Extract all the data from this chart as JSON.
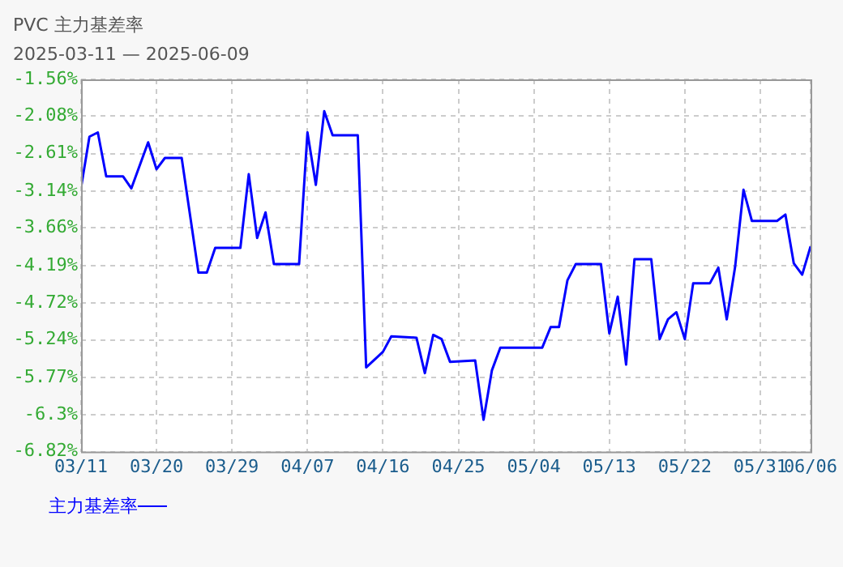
{
  "chart_data": {
    "type": "line",
    "title": "PVC 主力基差率",
    "subtitle": "2025-03-11 — 2025-06-09",
    "x": [
      "2025-03-11",
      "2025-03-12",
      "2025-03-13",
      "2025-03-14",
      "2025-03-16",
      "2025-03-17",
      "2025-03-19",
      "2025-03-20",
      "2025-03-21",
      "2025-03-23",
      "2025-03-25",
      "2025-03-26",
      "2025-03-27",
      "2025-03-30",
      "2025-03-31",
      "2025-04-01",
      "2025-04-02",
      "2025-04-03",
      "2025-04-06",
      "2025-04-07",
      "2025-04-08",
      "2025-04-09",
      "2025-04-10",
      "2025-04-13",
      "2025-04-14",
      "2025-04-16",
      "2025-04-17",
      "2025-04-20",
      "2025-04-21",
      "2025-04-22",
      "2025-04-23",
      "2025-04-24",
      "2025-04-27",
      "2025-04-28",
      "2025-04-29",
      "2025-04-30",
      "2025-05-05",
      "2025-05-06",
      "2025-05-07",
      "2025-05-08",
      "2025-05-09",
      "2025-05-12",
      "2025-05-13",
      "2025-05-14",
      "2025-05-15",
      "2025-05-16",
      "2025-05-18",
      "2025-05-19",
      "2025-05-20",
      "2025-05-21",
      "2025-05-22",
      "2025-05-23",
      "2025-05-25",
      "2025-05-26",
      "2025-05-27",
      "2025-05-28",
      "2025-05-29",
      "2025-05-30",
      "2025-06-02",
      "2025-06-03",
      "2025-06-04",
      "2025-06-05",
      "2025-06-06"
    ],
    "series": [
      {
        "name": "主力基差率",
        "color": "#0000ff",
        "values": [
          -3.09,
          -2.37,
          -2.31,
          -2.93,
          -2.93,
          -3.1,
          -2.45,
          -2.83,
          -2.67,
          -2.67,
          -4.29,
          -4.29,
          -3.94,
          -3.94,
          -2.9,
          -3.8,
          -3.44,
          -4.17,
          -4.17,
          -2.31,
          -3.05,
          -2.01,
          -2.35,
          -2.35,
          -5.63,
          -5.41,
          -5.19,
          -5.21,
          -5.71,
          -5.17,
          -5.23,
          -5.55,
          -5.53,
          -6.37,
          -5.67,
          -5.35,
          -5.35,
          -5.06,
          -5.06,
          -4.4,
          -4.17,
          -4.17,
          -5.15,
          -4.63,
          -5.59,
          -4.1,
          -4.1,
          -5.23,
          -4.95,
          -4.85,
          -5.23,
          -4.44,
          -4.44,
          -4.22,
          -4.95,
          -4.21,
          -3.12,
          -3.56,
          -3.56,
          -3.47,
          -4.16,
          -4.32,
          -3.92
        ]
      }
    ],
    "xlim": [
      "2025-03-11",
      "2025-06-06"
    ],
    "xticks": [
      {
        "value": "2025-03-11",
        "label": "03/11"
      },
      {
        "value": "2025-03-20",
        "label": "03/20"
      },
      {
        "value": "2025-03-29",
        "label": "03/29"
      },
      {
        "value": "2025-04-07",
        "label": "04/07"
      },
      {
        "value": "2025-04-16",
        "label": "04/16"
      },
      {
        "value": "2025-04-25",
        "label": "04/25"
      },
      {
        "value": "2025-05-04",
        "label": "05/04"
      },
      {
        "value": "2025-05-13",
        "label": "05/13"
      },
      {
        "value": "2025-05-22",
        "label": "05/22"
      },
      {
        "value": "2025-05-31",
        "label": "05/31"
      },
      {
        "value": "2025-06-06",
        "label": "06/06"
      }
    ],
    "ylim": [
      -6.82,
      -1.56
    ],
    "yticks": [
      {
        "value": -6.82,
        "label": "-6.82%"
      },
      {
        "value": -6.3,
        "label": "-6.3%"
      },
      {
        "value": -5.77,
        "label": "-5.77%"
      },
      {
        "value": -5.24,
        "label": "-5.24%"
      },
      {
        "value": -4.72,
        "label": "-4.72%"
      },
      {
        "value": -4.19,
        "label": "-4.19%"
      },
      {
        "value": -3.66,
        "label": "-3.66%"
      },
      {
        "value": -3.14,
        "label": "-3.14%"
      },
      {
        "value": -2.61,
        "label": "-2.61%"
      },
      {
        "value": -2.08,
        "label": "-2.08%"
      },
      {
        "value": -1.56,
        "label": "-1.56%"
      }
    ],
    "grid": true,
    "legend": "bottom left",
    "marker": "none",
    "line_style": "solid"
  }
}
